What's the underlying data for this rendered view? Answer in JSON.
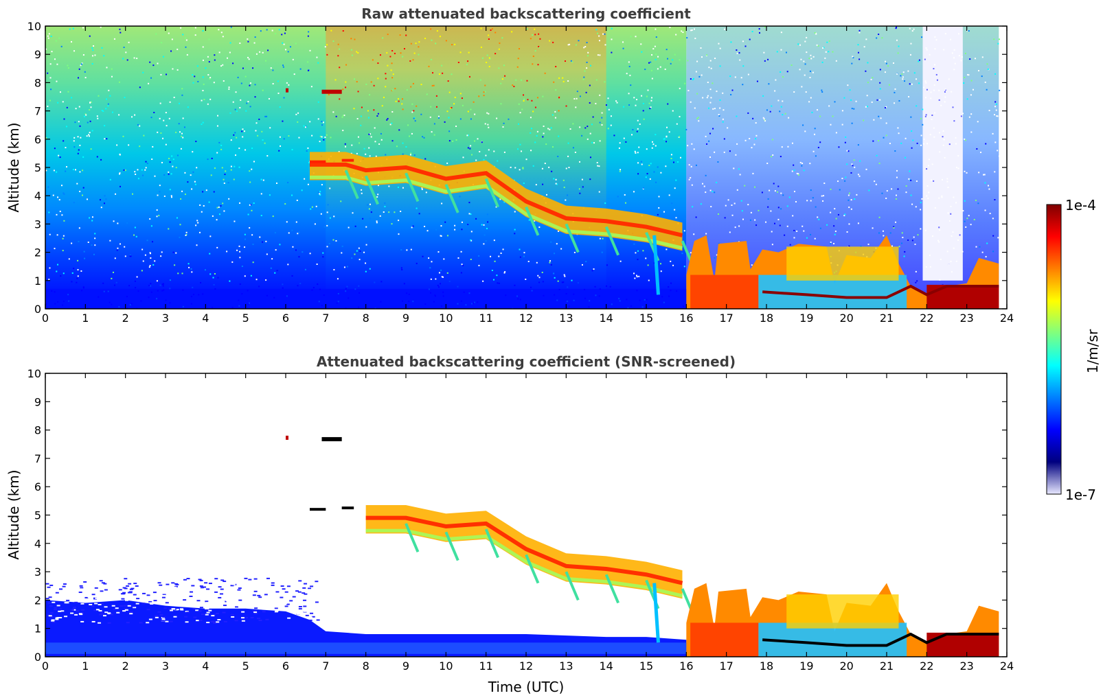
{
  "colors": {
    "jet": [
      "#00007f",
      "#0000ff",
      "#007fff",
      "#00ffff",
      "#7fff7f",
      "#ffff00",
      "#ff7f00",
      "#ff0000",
      "#7f0000"
    ],
    "frame": "#000000",
    "title": "#3d3d3d"
  },
  "colorbar": {
    "top_label": "1e-4",
    "bottom_label": "1e-7",
    "unit_label": "1/m/sr"
  },
  "chart_data": [
    {
      "type": "heatmap",
      "title": "Raw attenuated backscattering coefficient",
      "xlabel": "",
      "ylabel": "Altitude (km)",
      "xlim": [
        0,
        24
      ],
      "ylim": [
        0,
        10
      ],
      "x_ticks": [
        "0",
        "1",
        "2",
        "3",
        "4",
        "5",
        "6",
        "7",
        "8",
        "9",
        "10",
        "11",
        "12",
        "13",
        "14",
        "15",
        "16",
        "17",
        "18",
        "19",
        "20",
        "21",
        "22",
        "23",
        "24"
      ],
      "y_ticks": [
        "0",
        "1",
        "2",
        "3",
        "4",
        "5",
        "6",
        "7",
        "8",
        "9",
        "10"
      ],
      "screened": false,
      "features": [
        {
          "feature": "boundary_layer",
          "x": [
            0,
            16
          ],
          "y_top": 0.7
        },
        {
          "feature": "cloud_layer",
          "points": [
            [
              6.6,
              5.2
            ],
            [
              7.5,
              5.2
            ],
            [
              8,
              5.0
            ],
            [
              9,
              5.1
            ],
            [
              10,
              4.7
            ],
            [
              11,
              4.9
            ],
            [
              12,
              3.9
            ],
            [
              13,
              3.3
            ],
            [
              14,
              3.2
            ],
            [
              15,
              3.0
            ],
            [
              15.9,
              2.7
            ]
          ]
        },
        {
          "feature": "high_cloud",
          "x": [
            6.9,
            7.4
          ],
          "y": 7.65
        },
        {
          "feature": "low_cloud_region",
          "x": [
            16,
            23.8
          ],
          "y": [
            0,
            2.5
          ]
        }
      ]
    },
    {
      "type": "heatmap",
      "title": "Attenuated backscattering coefficient (SNR-screened)",
      "xlabel": "Time (UTC)",
      "ylabel": "Altitude (km)",
      "xlim": [
        0,
        24
      ],
      "ylim": [
        0,
        10
      ],
      "x_ticks": [
        "0",
        "1",
        "2",
        "3",
        "4",
        "5",
        "6",
        "7",
        "8",
        "9",
        "10",
        "11",
        "12",
        "13",
        "14",
        "15",
        "16",
        "17",
        "18",
        "19",
        "20",
        "21",
        "22",
        "23",
        "24"
      ],
      "y_ticks": [
        "0",
        "1",
        "2",
        "3",
        "4",
        "5",
        "6",
        "7",
        "8",
        "9",
        "10"
      ],
      "screened": true,
      "features": [
        {
          "feature": "boundary_layer",
          "x": [
            0,
            16
          ],
          "y_top": 2.0
        },
        {
          "feature": "cloud_layer",
          "points": [
            [
              8,
              5.0
            ],
            [
              9,
              5.0
            ],
            [
              10,
              4.7
            ],
            [
              11,
              4.8
            ],
            [
              12,
              3.9
            ],
            [
              13,
              3.3
            ],
            [
              14,
              3.2
            ],
            [
              15,
              3.0
            ],
            [
              15.9,
              2.7
            ]
          ]
        },
        {
          "feature": "high_cloud",
          "x": [
            6.9,
            7.4
          ],
          "y": 7.65
        },
        {
          "feature": "low_cloud_region",
          "x": [
            16,
            23.8
          ],
          "y": [
            0,
            2.7
          ]
        }
      ]
    }
  ]
}
